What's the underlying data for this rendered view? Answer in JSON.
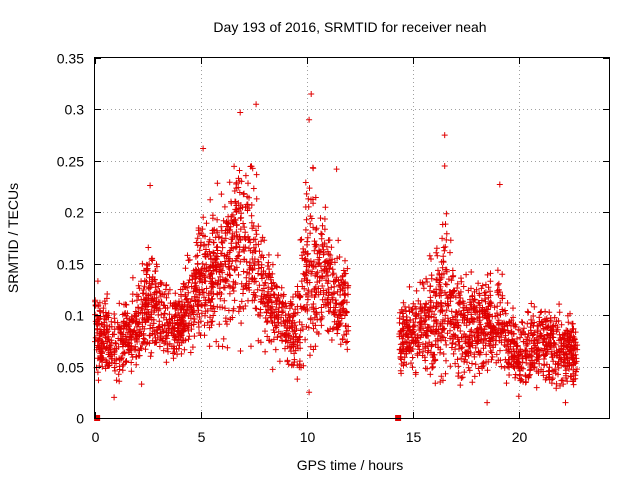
{
  "chart_data": {
    "type": "scatter",
    "title": "Day 193 of 2016, SRMTID for receiver neah",
    "xlabel": "GPS time / hours",
    "ylabel": "SRMTID / TECUs",
    "xlim": [
      0,
      24.25
    ],
    "ylim": [
      0,
      0.35
    ],
    "grid": true,
    "marker": "+",
    "color": "#e00000",
    "x_ticks": [
      0,
      5,
      10,
      15,
      20
    ],
    "x_tick_labels": [
      "0",
      "5",
      "10",
      "15",
      "20"
    ],
    "y_ticks": [
      0,
      0.05,
      0.1,
      0.15,
      0.2,
      0.25,
      0.3,
      0.35
    ],
    "y_tick_labels": [
      "0",
      "0.05",
      "0.1",
      "0.15",
      "0.2",
      "0.25",
      "0.3",
      "0.35"
    ],
    "zero_markers": [
      {
        "x": 0.1,
        "y": 0
      },
      {
        "x": 14.3,
        "y": 0
      }
    ],
    "series": [
      {
        "name": "SRMTID",
        "segments": [
          {
            "x_range": [
              0.0,
              11.95
            ],
            "envelope": [
              {
                "x": 0.0,
                "low": 0.04,
                "high": 0.15
              },
              {
                "x": 1.0,
                "low": 0.03,
                "high": 0.12
              },
              {
                "x": 2.0,
                "low": 0.04,
                "high": 0.15
              },
              {
                "x": 2.6,
                "low": 0.05,
                "high": 0.22
              },
              {
                "x": 3.0,
                "low": 0.05,
                "high": 0.16
              },
              {
                "x": 4.0,
                "low": 0.05,
                "high": 0.14
              },
              {
                "x": 5.0,
                "low": 0.07,
                "high": 0.24
              },
              {
                "x": 6.0,
                "low": 0.07,
                "high": 0.24
              },
              {
                "x": 6.7,
                "low": 0.08,
                "high": 0.29
              },
              {
                "x": 7.5,
                "low": 0.07,
                "high": 0.29
              },
              {
                "x": 8.0,
                "low": 0.06,
                "high": 0.21
              },
              {
                "x": 9.0,
                "low": 0.05,
                "high": 0.15
              },
              {
                "x": 9.5,
                "low": 0.03,
                "high": 0.16
              },
              {
                "x": 10.1,
                "low": 0.04,
                "high": 0.3
              },
              {
                "x": 10.6,
                "low": 0.07,
                "high": 0.24
              },
              {
                "x": 11.2,
                "low": 0.07,
                "high": 0.2
              },
              {
                "x": 11.95,
                "low": 0.05,
                "high": 0.18
              }
            ]
          },
          {
            "x_range": [
              14.35,
              22.75
            ],
            "envelope": [
              {
                "x": 14.35,
                "low": 0.04,
                "high": 0.13
              },
              {
                "x": 15.0,
                "low": 0.04,
                "high": 0.14
              },
              {
                "x": 15.5,
                "low": 0.04,
                "high": 0.17
              },
              {
                "x": 16.0,
                "low": 0.02,
                "high": 0.18
              },
              {
                "x": 16.5,
                "low": 0.03,
                "high": 0.24
              },
              {
                "x": 17.0,
                "low": 0.04,
                "high": 0.17
              },
              {
                "x": 18.0,
                "low": 0.04,
                "high": 0.15
              },
              {
                "x": 19.0,
                "low": 0.04,
                "high": 0.17
              },
              {
                "x": 20.0,
                "low": 0.02,
                "high": 0.11
              },
              {
                "x": 21.0,
                "low": 0.03,
                "high": 0.13
              },
              {
                "x": 22.0,
                "low": 0.02,
                "high": 0.14
              },
              {
                "x": 22.75,
                "low": 0.03,
                "high": 0.1
              }
            ]
          }
        ],
        "outliers": [
          {
            "x": 7.6,
            "y": 0.305
          },
          {
            "x": 10.2,
            "y": 0.315
          },
          {
            "x": 10.1,
            "y": 0.29
          },
          {
            "x": 6.85,
            "y": 0.297
          },
          {
            "x": 16.5,
            "y": 0.275
          },
          {
            "x": 16.5,
            "y": 0.245
          },
          {
            "x": 19.1,
            "y": 0.227
          },
          {
            "x": 10.1,
            "y": 0.025
          },
          {
            "x": 18.5,
            "y": 0.015
          },
          {
            "x": 22.2,
            "y": 0.015
          },
          {
            "x": 0.9,
            "y": 0.02
          },
          {
            "x": 2.2,
            "y": 0.033
          },
          {
            "x": 2.6,
            "y": 0.226
          },
          {
            "x": 5.1,
            "y": 0.262
          },
          {
            "x": 11.4,
            "y": 0.242
          }
        ]
      }
    ]
  }
}
